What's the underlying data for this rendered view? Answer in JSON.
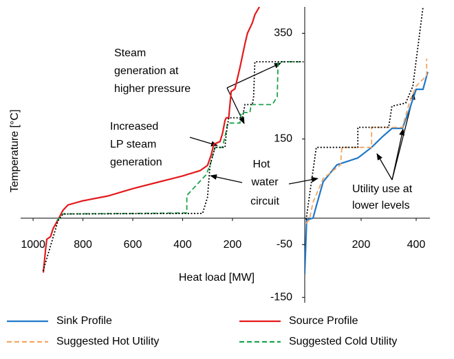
{
  "chart_data": [
    {
      "type": "line",
      "xlabel": "Heat load [MW]",
      "ylabel": "Temperature [°C]",
      "xlim": [
        1050,
        -90
      ],
      "xticks": [
        1000,
        800,
        600,
        400,
        200
      ],
      "ylim": [
        -160,
        400
      ],
      "yticks": [
        350,
        150,
        -50,
        -150
      ],
      "series": [
        {
          "name": "Source Profile",
          "color": "#e3191c",
          "style": "solid",
          "x": [
            959,
            950,
            945,
            930,
            920,
            900,
            880,
            860,
            800,
            700,
            600,
            500,
            400,
            330,
            300,
            285,
            275,
            250,
            240,
            230,
            225,
            215,
            205,
            190,
            170,
            150,
            140,
            130,
            120,
            110,
            92
          ],
          "values": [
            -103,
            -60,
            -40,
            -35,
            -20,
            -3,
            15,
            25,
            33,
            42,
            56,
            68,
            80,
            90,
            100,
            120,
            140,
            145,
            160,
            185,
            190,
            190,
            240,
            245,
            285,
            330,
            350,
            360,
            370,
            385,
            400
          ]
        },
        {
          "name": "Suggested Cold Utility",
          "color": "#1aa34a",
          "style": "dashed",
          "x": [
            905,
            880,
            600,
            383,
            383,
            330,
            306,
            290,
            270,
            240,
            225,
            220,
            170,
            165,
            130,
            125,
            40,
            20,
            17,
            -85
          ],
          "values": [
            -5,
            8,
            9,
            10,
            43,
            70,
            82,
            100,
            134,
            134,
            165,
            180,
            180,
            200,
            200,
            215,
            215,
            230,
            296,
            296
          ]
        },
        {
          "color": "#000000",
          "style": "dotted",
          "x": [
            960,
            900,
            880,
            320,
            300,
            290,
            270,
            230,
            225,
            215,
            160,
            150,
            120,
            115,
            110,
            -85
          ],
          "values": [
            -100,
            -5,
            8,
            9,
            40,
            100,
            134,
            134,
            160,
            190,
            190,
            215,
            215,
            230,
            296,
            296
          ]
        }
      ],
      "annotations": [
        [
          "Steam",
          "generation at",
          "higher pressure"
        ],
        [
          "Increased",
          "LP steam",
          "generation"
        ],
        [
          "Hot",
          "water",
          "circuit"
        ]
      ]
    },
    {
      "type": "line",
      "xlim": [
        -5,
        450
      ],
      "xticks": [
        200,
        400
      ],
      "ylim": [
        -160,
        400
      ],
      "series": [
        {
          "name": "Sink Profile",
          "color": "#1f78c8",
          "style": "solid",
          "x": [
            -5,
            2,
            25,
            37,
            62,
            112,
            188,
            238,
            275,
            312,
            350,
            375,
            400,
            425,
            442
          ],
          "values": [
            -106,
            -3,
            0,
            23,
            69,
            101,
            114,
            134,
            153,
            170,
            170,
            205,
            244,
            244,
            277
          ]
        },
        {
          "name": "Suggested Hot Utility",
          "color": "#f4a460",
          "style": "dashed",
          "x": [
            0,
            12,
            25,
            62,
            125,
            130,
            238,
            238,
            350,
            375,
            400,
            438,
            438
          ],
          "values": [
            -10,
            -3,
            30,
            75,
            101,
            134,
            134,
            172,
            172,
            218,
            250,
            270,
            302
          ]
        },
        {
          "color": "#000000",
          "style": "dotted",
          "x": [
            0,
            37,
            188,
            188,
            300,
            312,
            362,
            388,
            425
          ],
          "values": [
            -3,
            134,
            134,
            172,
            172,
            212,
            218,
            250,
            400
          ]
        }
      ],
      "annotations": [
        [
          "Utility use at",
          "lower levels"
        ]
      ]
    }
  ]
}
